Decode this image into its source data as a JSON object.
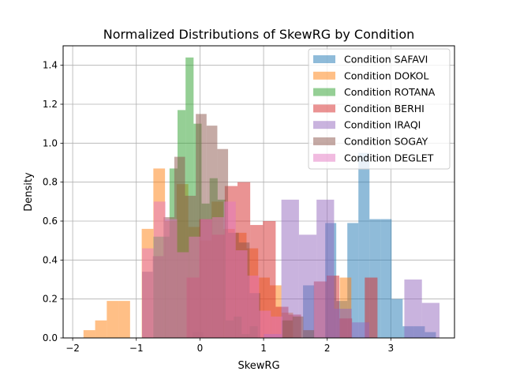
{
  "chart_data": {
    "type": "histogram",
    "title": "Normalized Distributions of SkewRG by Condition",
    "xlabel": "SkewRG",
    "ylabel": "Density",
    "xlim": [
      -2.15,
      4.0
    ],
    "ylim": [
      0,
      1.5
    ],
    "xticks": [
      -2,
      -1,
      0,
      1,
      2,
      3
    ],
    "yticks": [
      0.0,
      0.2,
      0.4,
      0.6,
      0.8,
      1.0,
      1.2,
      1.4
    ],
    "xtick_labels": [
      "−2",
      "−1",
      "0",
      "1",
      "2",
      "3"
    ],
    "ytick_labels": [
      "0.0",
      "0.2",
      "0.4",
      "0.6",
      "0.8",
      "1.0",
      "1.2",
      "1.4"
    ],
    "grid": true,
    "legend_position": "top-right",
    "bar_alpha": 0.5,
    "series": [
      {
        "name": "Condition SAFAVI",
        "color": "#1f77b4",
        "bin_start": -0.12,
        "bin_width": 0.174,
        "values": [
          0.03,
          0.0,
          0.0,
          0.0,
          0.0,
          0.0,
          0.0,
          0.0,
          0.0,
          0.0,
          0.27,
          0.0,
          0.59,
          0.19,
          0.59,
          0.95,
          0.61,
          0.61,
          0.2,
          0.06,
          0.06,
          0.03
        ]
      },
      {
        "name": "Condition DOKOL",
        "color": "#ff7f0e",
        "bin_start": -1.83,
        "bin_width": 0.183,
        "values": [
          0.04,
          0.09,
          0.19,
          0.19,
          0.0,
          0.56,
          0.87,
          0.6,
          0.79,
          0.57,
          0.5,
          0.7,
          0.56,
          0.54,
          0.46,
          0.31,
          0.27,
          0.13,
          0.0,
          0.0,
          0.0,
          0.0,
          0.31
        ]
      },
      {
        "name": "Condition ROTANA",
        "color": "#2ca02c",
        "bin_start": -0.73,
        "bin_width": 0.126,
        "values": [
          0.52,
          0.52,
          0.87,
          1.17,
          1.44,
          1.1,
          0.69,
          0.82,
          0.71,
          0.09,
          0.11,
          0.02,
          0.06
        ]
      },
      {
        "name": "Condition BERHI",
        "color": "#d62728",
        "bin_start": -0.21,
        "bin_width": 0.2,
        "values": [
          0.31,
          0.61,
          0.53,
          0.78,
          0.8,
          0.58,
          0.6,
          0.16,
          0.12,
          0.0,
          0.29,
          0.32,
          0.1,
          0.0,
          0.31
        ]
      },
      {
        "name": "Condition IRAQI",
        "color": "#9467bd",
        "bin_start": -0.1,
        "bin_width": 0.276,
        "values": [
          0.0,
          0.0,
          0.0,
          0.0,
          0.02,
          0.71,
          0.53,
          0.71,
          0.15,
          0.08,
          0.0,
          0.0,
          0.3,
          0.18
        ]
      },
      {
        "name": "Condition SOGAY",
        "color": "#8c564b",
        "bin_start": -0.91,
        "bin_width": 0.169,
        "values": [
          0.34,
          0.42,
          0.62,
          0.93,
          0.73,
          1.15,
          1.09,
          0.97,
          0.54,
          0.49,
          0.23,
          0.0,
          0.0,
          0.09,
          0.11,
          0.04
        ]
      },
      {
        "name": "Condition DEGLET",
        "color": "#e377c2",
        "bin_start": -0.91,
        "bin_width": 0.184,
        "values": [
          0.46,
          0.7,
          0.61,
          0.44,
          0.52,
          0.61,
          0.62,
          0.7,
          0.45,
          0.32,
          0.14,
          0.11
        ]
      }
    ]
  }
}
